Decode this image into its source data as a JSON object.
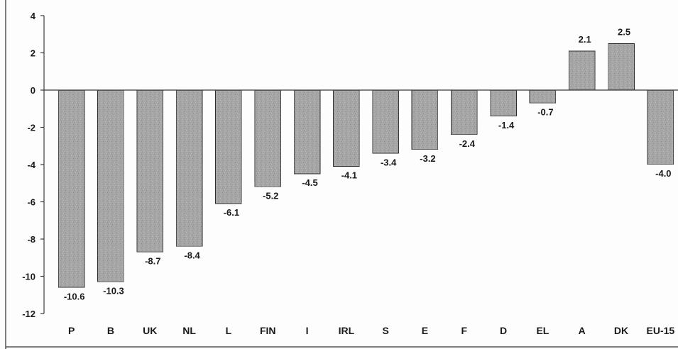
{
  "chart_data": {
    "type": "bar",
    "categories": [
      "P",
      "B",
      "UK",
      "NL",
      "L",
      "FIN",
      "I",
      "IRL",
      "S",
      "E",
      "F",
      "D",
      "EL",
      "A",
      "DK",
      "EU-15"
    ],
    "values": [
      -10.6,
      -10.3,
      -8.7,
      -8.4,
      -6.1,
      -5.2,
      -4.5,
      -4.1,
      -3.4,
      -3.2,
      -2.4,
      -1.4,
      -0.7,
      2.1,
      2.5,
      -4.0
    ],
    "value_labels": [
      "-10.6",
      "-10.3",
      "-8.7",
      "-8.4",
      "-6.1",
      "-5.2",
      "-4.5",
      "-4.1",
      "-3.4",
      "-3.2",
      "-2.4",
      "-1.4",
      "-0.7",
      "2.1",
      "2.5",
      "-4.0"
    ],
    "y_ticks": [
      4,
      2,
      0,
      -2,
      -4,
      -6,
      -8,
      -10,
      -12
    ],
    "y_tick_labels": [
      "4",
      "2",
      "0",
      "-2",
      "-4",
      "-6",
      "-8",
      "-10",
      "-12"
    ],
    "ylim": [
      -12,
      4
    ],
    "title": "",
    "xlabel": "",
    "ylabel": "",
    "grid": false,
    "legend": "none",
    "bar_color": "#a9a9a9",
    "bar_edge_color": "#2b2b2b"
  }
}
